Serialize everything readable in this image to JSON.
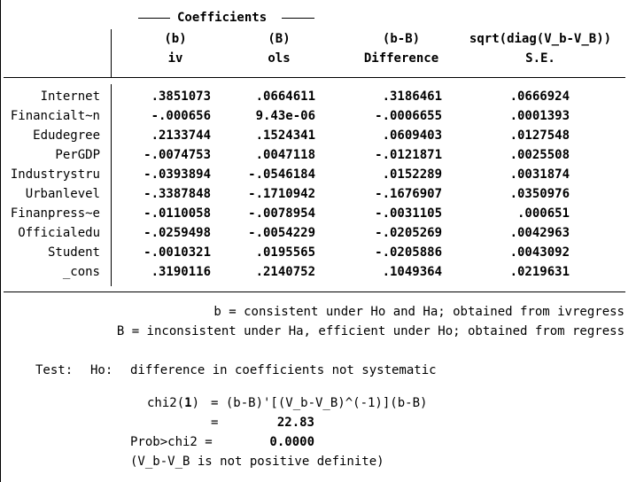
{
  "header": {
    "group_title": "Coefficients",
    "columns": [
      {
        "top": "(b)",
        "bottom": "iv"
      },
      {
        "top": "(B)",
        "bottom": "ols"
      },
      {
        "top": "(b-B)",
        "bottom": "Difference"
      },
      {
        "top": "sqrt(diag(V_b-V_B))",
        "bottom": "S.E."
      }
    ]
  },
  "rows": [
    {
      "name": "Internet",
      "b": ".3851073",
      "B": ".0664611",
      "diff": ".3186461",
      "se": ".0666924"
    },
    {
      "name": "Financialt~n",
      "b": "-.000656",
      "B": "9.43e-06",
      "diff": "-.0006655",
      "se": ".0001393"
    },
    {
      "name": "Edudegree",
      "b": ".2133744",
      "B": ".1524341",
      "diff": ".0609403",
      "se": ".0127548"
    },
    {
      "name": "PerGDP",
      "b": "-.0074753",
      "B": ".0047118",
      "diff": "-.0121871",
      "se": ".0025508"
    },
    {
      "name": "Industrystru",
      "b": "-.0393894",
      "B": "-.0546184",
      "diff": ".0152289",
      "se": ".0031874"
    },
    {
      "name": "Urbanlevel",
      "b": "-.3387848",
      "B": "-.1710942",
      "diff": "-.1676907",
      "se": ".0350976"
    },
    {
      "name": "Finanpress~e",
      "b": "-.0110058",
      "B": "-.0078954",
      "diff": "-.0031105",
      "se": ".000651"
    },
    {
      "name": "Officialedu",
      "b": "-.0259498",
      "B": "-.0054229",
      "diff": "-.0205269",
      "se": ".0042963"
    },
    {
      "name": "Student",
      "b": "-.0010321",
      "B": ".0195565",
      "diff": "-.0205886",
      "se": ".0043092"
    },
    {
      "name": "_cons",
      "b": ".3190116",
      "B": ".2140752",
      "diff": ".1049364",
      "se": ".0219631"
    }
  ],
  "notes": {
    "b_note": "b = consistent under Ho and Ha; obtained from ivregress",
    "B_note": "B = inconsistent under Ha, efficient under Ho; obtained from regress"
  },
  "test": {
    "label": "Test:",
    "ho_label": "Ho:",
    "ho_text": "difference in coefficients not systematic",
    "chi2_label": "chi2(1)",
    "chi2_df": "1",
    "chi2_formula": "= (b-B)'[(V_b-V_B)^(-1)](b-B)",
    "equals": "=",
    "chi2_value": "22.83",
    "prob_label": "Prob>chi2 =",
    "prob_value": "0.0000",
    "note": "(V_b-V_B is not positive definite)"
  }
}
